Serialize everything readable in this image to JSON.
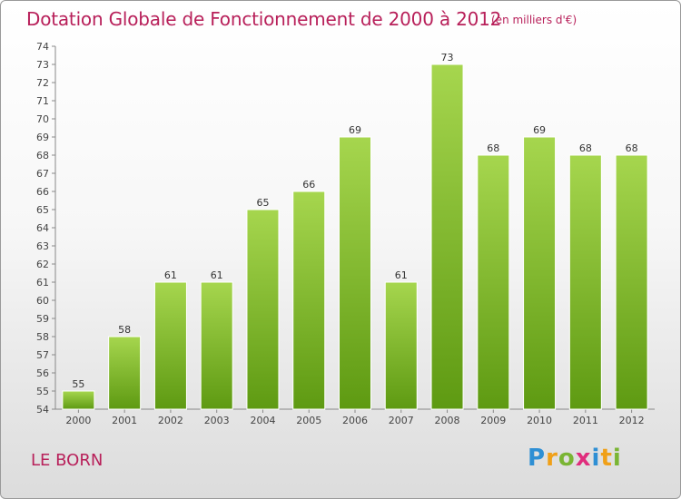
{
  "title": "Dotation Globale de Fonctionnement de 2000 à 2012",
  "title_unit": "(en milliers d'€)",
  "place": "LE BORN",
  "logo": "Proxiti",
  "colors": {
    "title": "#b8205a",
    "bar_top": "#a6d64e",
    "bar_bottom": "#5e9a12"
  },
  "chart_data": {
    "type": "bar",
    "categories": [
      "2000",
      "2001",
      "2002",
      "2003",
      "2004",
      "2005",
      "2006",
      "2007",
      "2008",
      "2009",
      "2010",
      "2011",
      "2012"
    ],
    "values": [
      55,
      58,
      61,
      61,
      65,
      66,
      69,
      61,
      73,
      68,
      69,
      68,
      68
    ],
    "ylim": [
      54,
      74
    ],
    "yticks": [
      54,
      55,
      56,
      57,
      58,
      59,
      60,
      61,
      62,
      63,
      64,
      65,
      66,
      67,
      68,
      69,
      70,
      71,
      72,
      73,
      74
    ],
    "grid": false
  }
}
